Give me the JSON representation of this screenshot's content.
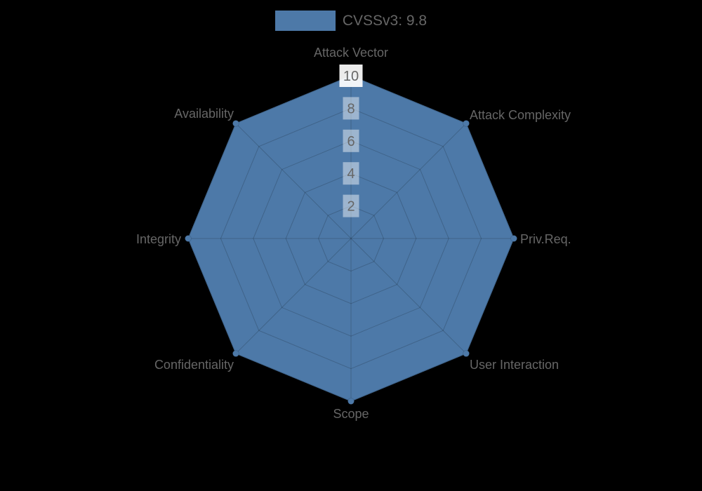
{
  "page": {
    "background": "#000000"
  },
  "chart_data": {
    "type": "radar",
    "title": "",
    "legend": {
      "label": "CVSSv3: 9.8",
      "color": "#4d79a8",
      "position": "top"
    },
    "axes": [
      "Attack Vector",
      "Attack Complexity",
      "Priv.Req.",
      "User Interaction",
      "Scope",
      "Confidentiality",
      "Integrity",
      "Availability"
    ],
    "series": [
      {
        "name": "CVSSv3: 9.8",
        "values": [
          10,
          10,
          10,
          10,
          10,
          10,
          10,
          10
        ],
        "fill_color": "#4d79a8"
      }
    ],
    "scale": {
      "min": 0,
      "max": 10,
      "tick_step": 2,
      "tick_labels": [
        "2",
        "4",
        "6",
        "8",
        "10"
      ]
    },
    "styles": {
      "label_color": "#666666",
      "tick_color": "#666666",
      "grid_color": "rgba(0,0,0,0.18)",
      "tick_backdrop": "rgba(255,255,255,0.45)",
      "tick_backdrop_max": "rgba(255,255,255,0.92)"
    }
  }
}
